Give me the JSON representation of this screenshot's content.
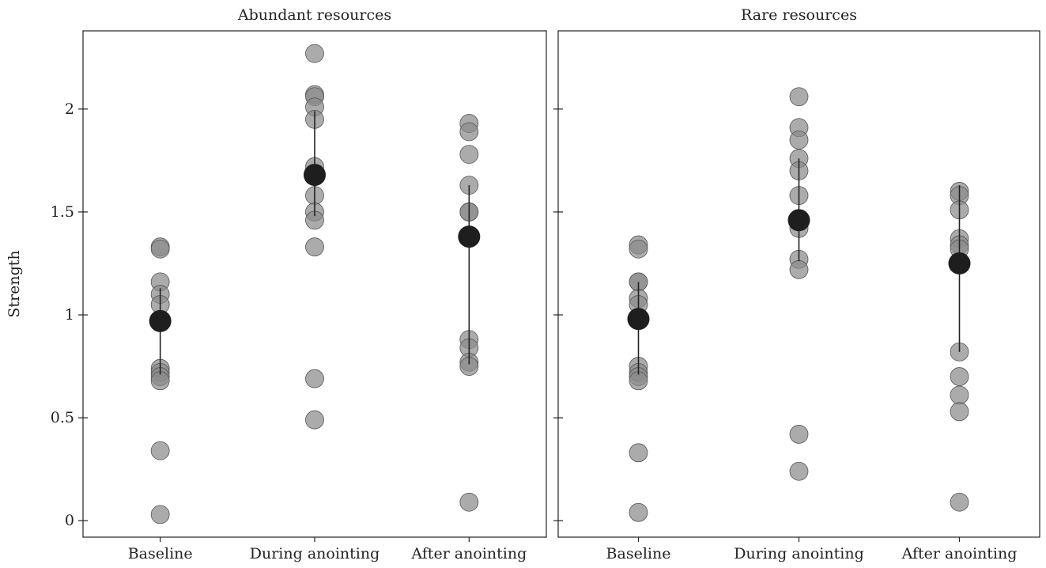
{
  "colors": {
    "individual_point": "#8a8a8a",
    "individual_stroke": "#555555",
    "mean_point": "#1e1e1e",
    "axis": "#222222"
  },
  "chart_data": [
    {
      "type": "scatter",
      "title": "Abundant resources",
      "xlabel": "",
      "ylabel": "Strength",
      "categories": [
        "Baseline",
        "During anointing",
        "After anointing"
      ],
      "ylim": [
        -0.08,
        2.38
      ],
      "yticks": [
        0,
        0.5,
        1,
        1.5,
        2
      ],
      "ytick_labels": [
        "0",
        "0.5",
        "1",
        "1.5",
        "2"
      ],
      "grid": false,
      "individual_values": [
        [
          1.33,
          1.32,
          1.16,
          1.1,
          1.05,
          0.74,
          0.72,
          0.7,
          0.68,
          0.34,
          0.03
        ],
        [
          2.27,
          2.07,
          2.06,
          2.01,
          1.95,
          1.72,
          1.58,
          1.5,
          1.46,
          1.33,
          0.69,
          0.49
        ],
        [
          1.93,
          1.89,
          1.78,
          1.63,
          1.5,
          1.5,
          0.88,
          0.84,
          0.77,
          0.75,
          0.09
        ]
      ],
      "means": [
        0.97,
        1.68,
        1.38
      ],
      "error_bars": [
        [
          0.71,
          1.13
        ],
        [
          1.48,
          1.99
        ],
        [
          0.76,
          1.63
        ]
      ]
    },
    {
      "type": "scatter",
      "title": "Rare resources",
      "xlabel": "",
      "ylabel": "",
      "categories": [
        "Baseline",
        "During anointing",
        "After anointing"
      ],
      "ylim": [
        -0.08,
        2.38
      ],
      "yticks": [
        0,
        0.5,
        1,
        1.5,
        2
      ],
      "ytick_labels": [
        "",
        "",
        "",
        "",
        ""
      ],
      "grid": false,
      "individual_values": [
        [
          1.34,
          1.32,
          1.16,
          1.16,
          1.08,
          1.05,
          0.75,
          0.72,
          0.7,
          0.68,
          0.33,
          0.04
        ],
        [
          2.06,
          1.91,
          1.85,
          1.76,
          1.7,
          1.58,
          1.42,
          1.27,
          1.22,
          0.42,
          0.24
        ],
        [
          1.6,
          1.58,
          1.51,
          1.37,
          1.34,
          1.32,
          0.82,
          0.7,
          0.61,
          0.53,
          0.09
        ]
      ],
      "means": [
        0.98,
        1.46,
        1.25
      ],
      "error_bars": [
        [
          0.71,
          1.16
        ],
        [
          1.26,
          1.76
        ],
        [
          0.82,
          1.63
        ]
      ]
    }
  ]
}
